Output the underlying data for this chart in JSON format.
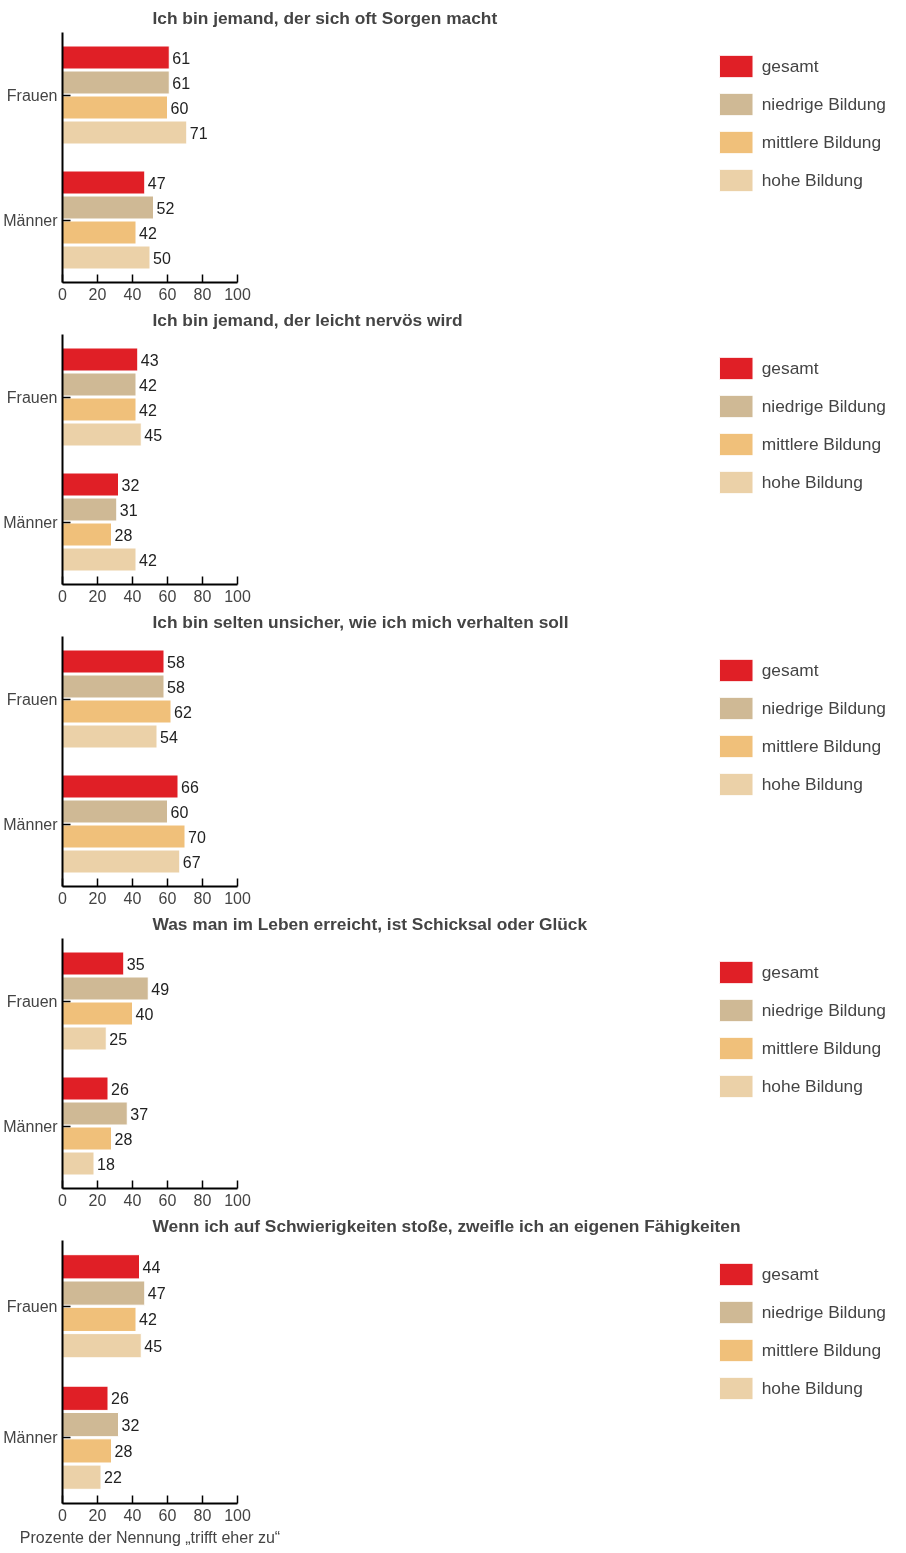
{
  "chart_data": [
    {
      "type": "bar",
      "orientation": "horizontal",
      "title": "Ich bin jemand, der sich oft Sorgen macht",
      "categories": [
        "Frauen",
        "Männer"
      ],
      "series": [
        {
          "name": "gesamt",
          "color": "#e01f26",
          "values": [
            61,
            47
          ]
        },
        {
          "name": "niedrige Bildung",
          "color": "#cfb995",
          "values": [
            61,
            52
          ]
        },
        {
          "name": "mittlere Bildung",
          "color": "#f0c07a",
          "values": [
            60,
            42
          ]
        },
        {
          "name": "hohe Bildung",
          "color": "#ebd1a8",
          "values": [
            71,
            50
          ]
        }
      ],
      "xlim": [
        0,
        100
      ],
      "xticks": [
        0,
        20,
        40,
        60,
        80,
        100
      ],
      "data_labels": true,
      "legend": "right",
      "grid": false
    },
    {
      "type": "bar",
      "orientation": "horizontal",
      "title": "Ich bin jemand, der leicht nervös wird",
      "categories": [
        "Frauen",
        "Männer"
      ],
      "series": [
        {
          "name": "gesamt",
          "color": "#e01f26",
          "values": [
            43,
            32
          ]
        },
        {
          "name": "niedrige Bildung",
          "color": "#cfb995",
          "values": [
            42,
            31
          ]
        },
        {
          "name": "mittlere Bildung",
          "color": "#f0c07a",
          "values": [
            42,
            28
          ]
        },
        {
          "name": "hohe Bildung",
          "color": "#ebd1a8",
          "values": [
            45,
            42
          ]
        }
      ],
      "xlim": [
        0,
        100
      ],
      "xticks": [
        0,
        20,
        40,
        60,
        80,
        100
      ],
      "data_labels": true,
      "legend": "right",
      "grid": false
    },
    {
      "type": "bar",
      "orientation": "horizontal",
      "title": "Ich bin selten unsicher, wie ich mich verhalten soll",
      "categories": [
        "Frauen",
        "Männer"
      ],
      "series": [
        {
          "name": "gesamt",
          "color": "#e01f26",
          "values": [
            58,
            66
          ]
        },
        {
          "name": "niedrige Bildung",
          "color": "#cfb995",
          "values": [
            58,
            60
          ]
        },
        {
          "name": "mittlere Bildung",
          "color": "#f0c07a",
          "values": [
            62,
            70
          ]
        },
        {
          "name": "hohe Bildung",
          "color": "#ebd1a8",
          "values": [
            54,
            67
          ]
        }
      ],
      "xlim": [
        0,
        100
      ],
      "xticks": [
        0,
        20,
        40,
        60,
        80,
        100
      ],
      "data_labels": true,
      "legend": "right",
      "grid": false
    },
    {
      "type": "bar",
      "orientation": "horizontal",
      "title": "Was man im Leben erreicht, ist Schicksal oder Glück",
      "categories": [
        "Frauen",
        "Männer"
      ],
      "series": [
        {
          "name": "gesamt",
          "color": "#e01f26",
          "values": [
            35,
            26
          ]
        },
        {
          "name": "niedrige Bildung",
          "color": "#cfb995",
          "values": [
            49,
            37
          ]
        },
        {
          "name": "mittlere Bildung",
          "color": "#f0c07a",
          "values": [
            40,
            28
          ]
        },
        {
          "name": "hohe Bildung",
          "color": "#ebd1a8",
          "values": [
            25,
            18
          ]
        }
      ],
      "xlim": [
        0,
        100
      ],
      "xticks": [
        0,
        20,
        40,
        60,
        80,
        100
      ],
      "data_labels": true,
      "legend": "right",
      "grid": false
    },
    {
      "type": "bar",
      "orientation": "horizontal",
      "title": "Wenn ich auf Schwierigkeiten stoße, zweifle ich an eigenen Fähigkeiten",
      "xlabel": "Prozente der Nennung „trifft eher zu“",
      "categories": [
        "Frauen",
        "Männer"
      ],
      "series": [
        {
          "name": "gesamt",
          "color": "#e01f26",
          "values": [
            44,
            26
          ]
        },
        {
          "name": "niedrige Bildung",
          "color": "#cfb995",
          "values": [
            47,
            32
          ]
        },
        {
          "name": "mittlere Bildung",
          "color": "#f0c07a",
          "values": [
            42,
            28
          ]
        },
        {
          "name": "hohe Bildung",
          "color": "#ebd1a8",
          "values": [
            45,
            22
          ]
        }
      ],
      "xlim": [
        0,
        100
      ],
      "xticks": [
        0,
        20,
        40,
        60,
        80,
        100
      ],
      "data_labels": true,
      "legend": "right",
      "grid": false
    }
  ]
}
